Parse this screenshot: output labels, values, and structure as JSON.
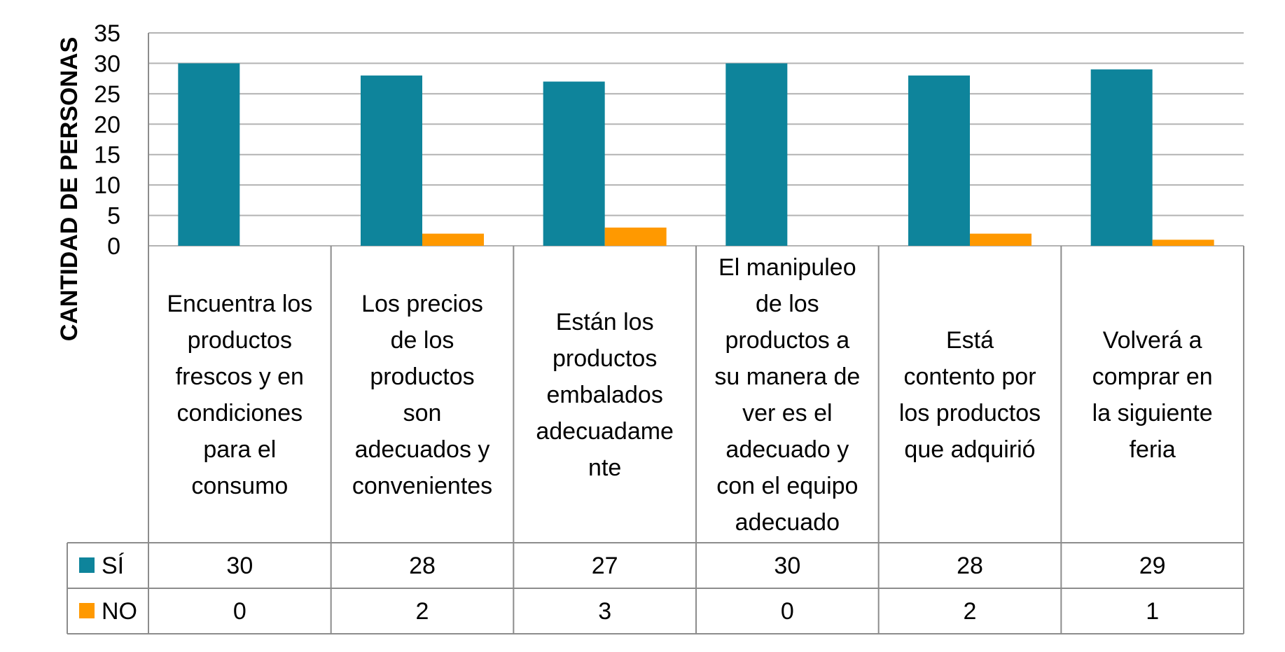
{
  "chart_data": {
    "type": "bar",
    "ylabel": "CANTIDAD DE PERSONAS",
    "ylim": [
      0,
      35
    ],
    "yticks": [
      "35",
      "30",
      "25",
      "20",
      "15",
      "10",
      "5",
      "0"
    ],
    "grid": true,
    "legend": "data-table-left",
    "categories": [
      [
        "Encuentra los",
        "productos",
        "frescos y en",
        "condiciones",
        "para el",
        "consumo"
      ],
      [
        "Los precios",
        "de los",
        "productos",
        "son",
        "adecuados y",
        "convenientes"
      ],
      [
        "Están los",
        "productos",
        "embalados",
        "adecuadame",
        "nte"
      ],
      [
        "El manipuleo",
        "de los",
        "productos a",
        "su manera de",
        "ver es el",
        "adecuado y",
        "con el equipo",
        "adecuado"
      ],
      [
        "Está",
        "contento por",
        "los productos",
        "que adquirió"
      ],
      [
        "Volverá a",
        "comprar en",
        "la siguiente",
        "feria"
      ]
    ],
    "series": [
      {
        "name": "SÍ",
        "color": "#0e849b",
        "values": [
          30,
          28,
          27,
          30,
          28,
          29
        ]
      },
      {
        "name": "NO",
        "color": "#ff9900",
        "values": [
          0,
          2,
          3,
          0,
          2,
          1
        ]
      }
    ],
    "table_values": [
      [
        "30",
        "28",
        "27",
        "30",
        "28",
        "29"
      ],
      [
        "0",
        "2",
        "3",
        "0",
        "2",
        "1"
      ]
    ]
  }
}
